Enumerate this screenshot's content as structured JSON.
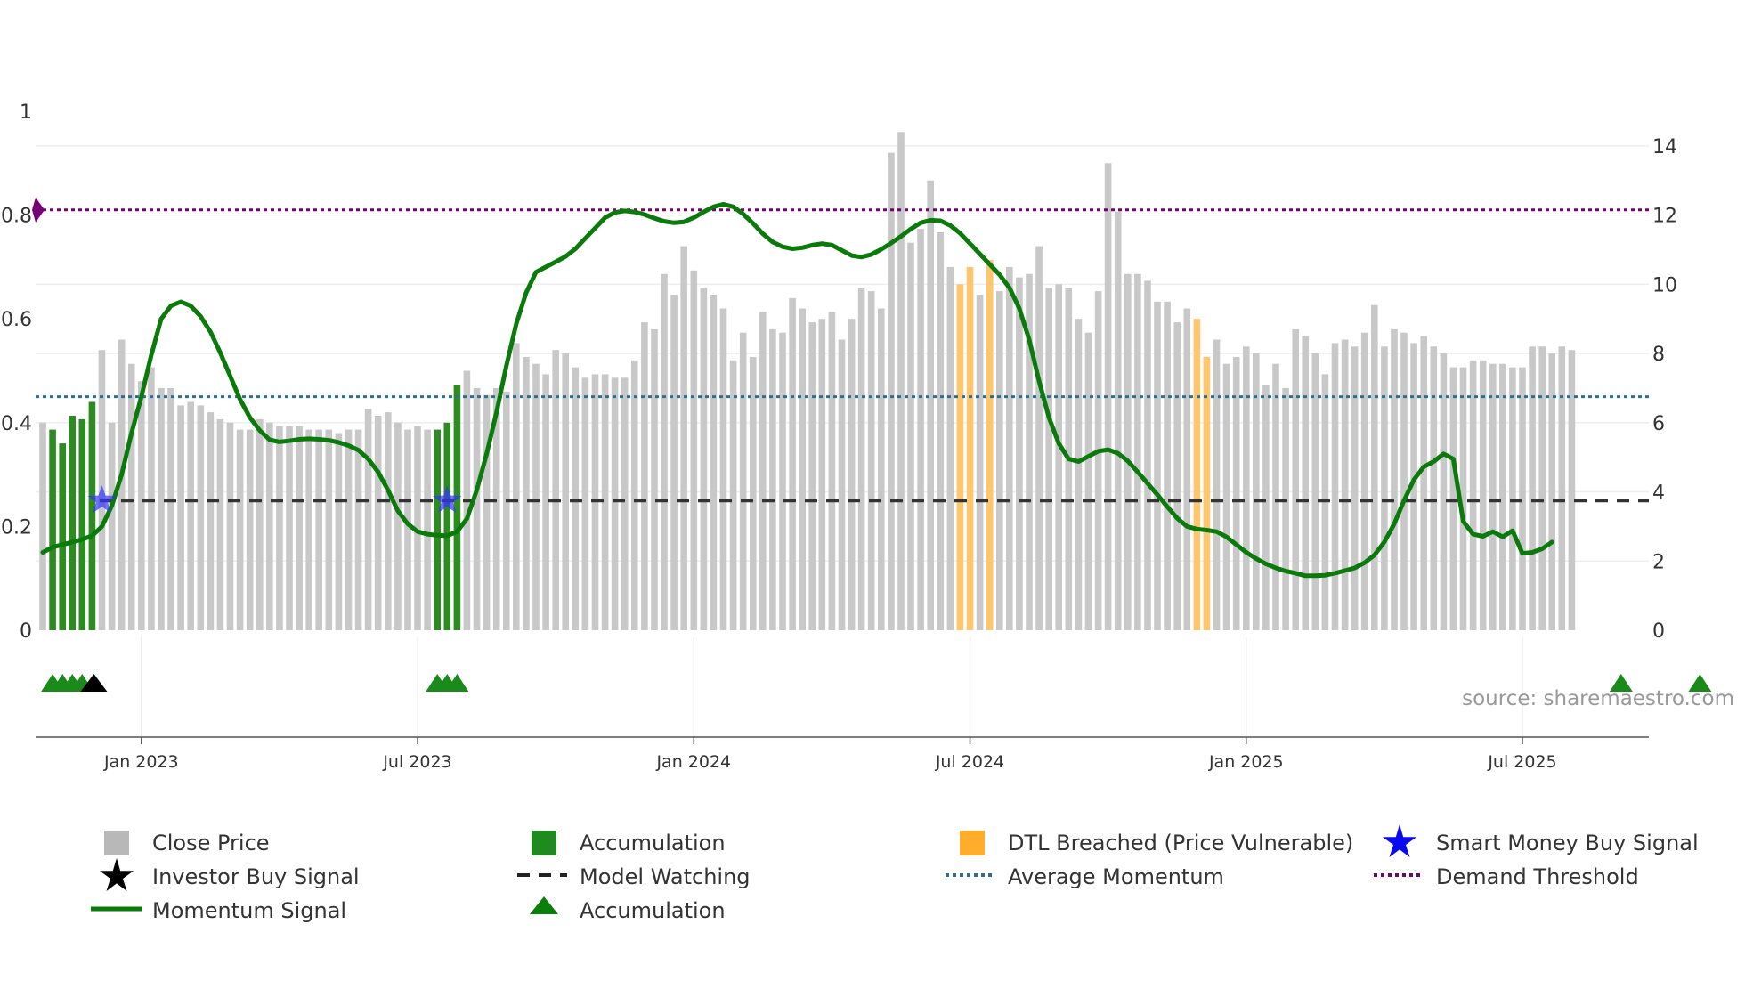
{
  "chart_data": {
    "type": "bar",
    "source": "source: sharemaestro.com",
    "left_axis": {
      "ticks": [
        0,
        0.2,
        0.4,
        0.6,
        0.8,
        1
      ],
      "tick_labels": [
        "0",
        "0.2",
        "0.4",
        "0.6",
        "0.8",
        "1"
      ],
      "range": [
        0,
        1.0
      ]
    },
    "right_axis": {
      "ticks": [
        0,
        2,
        4,
        6,
        8,
        10,
        12,
        14
      ],
      "tick_labels": [
        "0",
        "2",
        "4",
        "6",
        "8",
        "10",
        "12",
        "14"
      ],
      "range": [
        0,
        15.0
      ]
    },
    "date_axis": {
      "labels": [
        "Jan 2023",
        "Jul 2023",
        "Jan 2024",
        "Jul 2024",
        "Jan 2025",
        "Jul 2025"
      ],
      "label_week_index": [
        10,
        38,
        66,
        94,
        122,
        150
      ]
    },
    "colors": {
      "close": "#c8c8c8",
      "accumulation": "#2e8b22",
      "dtl": "#ffc66e",
      "momentum": "#0a7a0a",
      "avg_momentum": "#2b6f97",
      "demand": "#770077",
      "watch": "#333333",
      "smart_money": "#3333ff",
      "investor": "#000000",
      "triangle": "#1a8a1a"
    },
    "weekly_close": [
      6.0,
      5.8,
      5.4,
      6.2,
      6.1,
      6.6,
      8.1,
      6.0,
      8.4,
      7.7,
      7.2,
      7.6,
      7.0,
      7.0,
      6.5,
      6.6,
      6.5,
      6.3,
      6.1,
      6.0,
      5.8,
      5.8,
      6.1,
      6.0,
      5.9,
      5.9,
      5.9,
      5.8,
      5.8,
      5.8,
      5.7,
      5.8,
      5.8,
      6.4,
      6.2,
      6.3,
      6.0,
      5.8,
      5.9,
      5.8,
      5.8,
      6.0,
      7.1,
      7.5,
      7.0,
      6.8,
      7.0,
      6.9,
      8.3,
      7.9,
      7.7,
      7.4,
      8.1,
      8.0,
      7.6,
      7.3,
      7.4,
      7.4,
      7.3,
      7.3,
      7.8,
      8.9,
      8.7,
      10.3,
      9.7,
      11.1,
      10.4,
      9.9,
      9.7,
      9.3,
      7.8,
      8.6,
      7.9,
      9.2,
      8.7,
      8.6,
      9.6,
      9.3,
      8.9,
      9.0,
      9.2,
      8.4,
      9.0,
      9.9,
      9.8,
      9.3,
      13.8,
      14.4,
      11.2,
      11.6,
      13.0,
      11.5,
      10.5,
      10.0,
      10.5,
      9.7,
      10.7,
      9.8,
      10.5,
      10.2,
      10.3,
      11.1,
      9.9,
      10.0,
      9.9,
      9.0,
      8.6,
      9.8,
      13.5,
      12.1,
      10.3,
      10.3,
      10.1,
      9.5,
      9.5,
      8.9,
      9.3,
      9.0,
      7.9,
      8.4,
      7.7,
      7.9,
      8.2,
      8.0,
      7.1,
      7.7,
      7.0,
      8.7,
      8.5,
      8.0,
      7.4,
      8.3,
      8.4,
      8.2,
      8.6,
      9.4,
      8.2,
      8.7,
      8.6,
      8.3,
      8.5,
      8.2,
      8.0,
      7.6,
      7.6,
      7.8,
      7.8,
      7.7,
      7.7,
      7.6,
      7.6,
      8.2,
      8.2,
      8.0,
      8.2,
      8.1
    ],
    "accumulation_weeks": [
      1,
      2,
      3,
      4,
      5,
      40,
      41,
      42,
      160,
      168
    ],
    "dtl_weeks": [
      93,
      94,
      96,
      117,
      118
    ],
    "momentum": [
      0.15,
      0.16,
      0.165,
      0.17,
      0.175,
      0.182,
      0.2,
      0.24,
      0.3,
      0.38,
      0.45,
      0.53,
      0.6,
      0.625,
      0.633,
      0.625,
      0.605,
      0.575,
      0.535,
      0.49,
      0.445,
      0.41,
      0.385,
      0.367,
      0.363,
      0.365,
      0.368,
      0.369,
      0.368,
      0.366,
      0.362,
      0.356,
      0.347,
      0.33,
      0.305,
      0.27,
      0.23,
      0.205,
      0.19,
      0.185,
      0.183,
      0.182,
      0.19,
      0.215,
      0.27,
      0.34,
      0.42,
      0.51,
      0.59,
      0.65,
      0.69,
      0.7,
      0.71,
      0.72,
      0.735,
      0.755,
      0.775,
      0.795,
      0.805,
      0.808,
      0.806,
      0.801,
      0.794,
      0.788,
      0.785,
      0.787,
      0.795,
      0.806,
      0.816,
      0.821,
      0.816,
      0.802,
      0.784,
      0.764,
      0.748,
      0.739,
      0.735,
      0.737,
      0.742,
      0.745,
      0.742,
      0.732,
      0.722,
      0.719,
      0.724,
      0.734,
      0.746,
      0.759,
      0.773,
      0.785,
      0.79,
      0.789,
      0.78,
      0.765,
      0.745,
      0.725,
      0.705,
      0.685,
      0.66,
      0.62,
      0.56,
      0.48,
      0.41,
      0.36,
      0.33,
      0.325,
      0.335,
      0.345,
      0.348,
      0.341,
      0.326,
      0.305,
      0.283,
      0.261,
      0.238,
      0.216,
      0.2,
      0.195,
      0.193,
      0.19,
      0.18,
      0.165,
      0.15,
      0.138,
      0.128,
      0.12,
      0.114,
      0.11,
      0.105,
      0.105,
      0.106,
      0.11,
      0.115,
      0.12,
      0.13,
      0.145,
      0.17,
      0.205,
      0.25,
      0.29,
      0.315,
      0.325,
      0.34,
      0.33,
      0.21,
      0.185,
      0.181,
      0.19,
      0.18,
      0.192,
      0.148,
      0.15,
      0.157,
      0.17
    ]
  },
  "series_values": {
    "demand_threshold": 0.81,
    "average_momentum": 0.45,
    "model_watching": 0.25
  },
  "signals": {
    "smart_money_weeks": [
      6,
      41
    ],
    "investor_weeks": [
      5
    ],
    "triangle_weeks": [
      1,
      2,
      3,
      4,
      40,
      41,
      42,
      160,
      168
    ]
  },
  "legend": {
    "close": "Close Price",
    "accumulation_bar": "Accumulation",
    "dtl": "DTL Breached (Price Vulnerable)",
    "smart_money": "Smart Money Buy Signal",
    "investor": "Investor Buy Signal",
    "model_watching": "Model Watching",
    "avg_momentum": "Average Momentum",
    "demand": "Demand Threshold",
    "momentum": "Momentum Signal",
    "accumulation_triangle": "Accumulation"
  }
}
